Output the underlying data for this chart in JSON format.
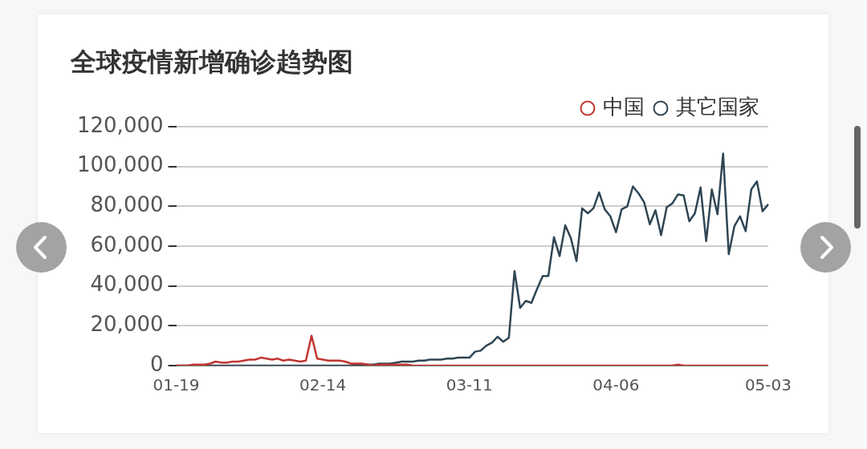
{
  "chart_data": {
    "type": "line",
    "title": "全球疫情新增确诊趋势图",
    "categories": [
      "01-19",
      null,
      null,
      null,
      null,
      null,
      null,
      null,
      null,
      null,
      null,
      null,
      null,
      null,
      null,
      null,
      null,
      null,
      null,
      null,
      null,
      null,
      null,
      null,
      null,
      null,
      "02-14",
      null,
      null,
      null,
      null,
      null,
      null,
      null,
      null,
      null,
      null,
      null,
      null,
      null,
      null,
      null,
      null,
      null,
      null,
      null,
      null,
      null,
      null,
      null,
      null,
      null,
      "03-11",
      null,
      null,
      null,
      null,
      null,
      null,
      null,
      null,
      null,
      null,
      null,
      null,
      null,
      null,
      null,
      null,
      null,
      null,
      null,
      null,
      null,
      null,
      null,
      null,
      null,
      "04-06",
      null,
      null,
      null,
      null,
      null,
      null,
      null,
      null,
      null,
      null,
      null,
      null,
      null,
      null,
      null,
      null,
      null,
      null,
      null,
      null,
      null,
      null,
      null,
      null,
      null,
      null,
      "05-03"
    ],
    "series": [
      {
        "name": "中国",
        "color": "#c23531",
        "values": [
          0,
          0,
          0,
          500,
          500,
          500,
          1000,
          2000,
          1500,
          1500,
          2000,
          2000,
          2500,
          3000,
          3000,
          4000,
          3500,
          3000,
          3500,
          2500,
          3000,
          2500,
          2000,
          2500,
          15000,
          3500,
          3000,
          2500,
          2500,
          2500,
          2000,
          1000,
          1000,
          1000,
          500,
          0,
          500,
          500,
          500,
          500,
          500,
          500,
          0,
          0,
          0,
          0,
          0,
          0,
          0,
          0,
          0,
          0,
          0,
          0,
          0,
          0,
          0,
          0,
          0,
          0,
          0,
          0,
          0,
          0,
          0,
          0,
          0,
          0,
          0,
          0,
          0,
          0,
          0,
          0,
          0,
          0,
          0,
          0,
          0,
          0,
          0,
          0,
          0,
          0,
          0,
          0,
          0,
          0,
          0,
          500,
          0,
          0,
          0,
          0,
          0,
          0,
          0,
          0,
          0,
          0,
          0,
          0,
          0,
          0,
          0,
          0
        ]
      },
      {
        "name": "其它国家",
        "color": "#2f4554",
        "values": [
          0,
          0,
          0,
          0,
          0,
          0,
          0,
          0,
          0,
          0,
          0,
          0,
          0,
          0,
          0,
          0,
          0,
          0,
          0,
          0,
          0,
          0,
          0,
          0,
          0,
          0,
          0,
          0,
          0,
          0,
          0,
          0,
          500,
          500,
          500,
          500,
          1000,
          1000,
          1000,
          1500,
          2000,
          2000,
          2000,
          2500,
          2500,
          3000,
          3000,
          3000,
          3500,
          3500,
          4000,
          4000,
          4000,
          7000,
          7500,
          10000,
          11500,
          14500,
          12000,
          14000,
          47500,
          29000,
          32500,
          31500,
          38500,
          45000,
          45000,
          64500,
          55000,
          70500,
          64000,
          52500,
          79000,
          76500,
          79000,
          87000,
          78500,
          75000,
          67000,
          78500,
          80000,
          90000,
          86500,
          82000,
          71000,
          78000,
          65500,
          79500,
          81500,
          86000,
          85500,
          72500,
          76500,
          89500,
          62500,
          88500,
          76000,
          106500,
          56000,
          70000,
          75000,
          67500,
          88500,
          92500,
          77500,
          81000
        ]
      }
    ],
    "ylim": [
      0,
      120000
    ],
    "yticks": [
      {
        "value": 0,
        "label": "0"
      },
      {
        "value": 20000,
        "label": "20,000"
      },
      {
        "value": 40000,
        "label": "40,000"
      },
      {
        "value": 60000,
        "label": "60,000"
      },
      {
        "value": 80000,
        "label": "80,000"
      },
      {
        "value": 100000,
        "label": "100,000"
      },
      {
        "value": 120000,
        "label": "120,000"
      }
    ],
    "grid": "y",
    "legend": "top right",
    "marker": "none",
    "line_style": "solid"
  }
}
